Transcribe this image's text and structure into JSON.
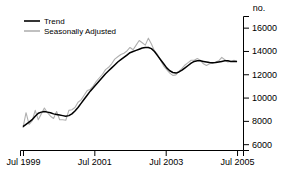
{
  "chart_data": {
    "type": "line",
    "ylabel": "no.",
    "x": [
      0,
      1.0285714286,
      2.0571428571,
      3.0857142857,
      4.1142857143,
      5.1428571429,
      6.1714285714,
      7.2,
      8.2285714286,
      9.2571428571,
      10.2857142857,
      11.3142857143,
      12.3428571429,
      13.3714285714,
      14.4,
      15.4285714286,
      16.4571428571,
      17.4857142857,
      18.5142857143,
      19.5428571429,
      20.5714285714,
      21.6,
      22.6285714286,
      23.6571428571,
      24.6857142857,
      25.7142857143,
      26.7428571429,
      27.7714285714,
      28.8,
      29.8285714286,
      30.8571428571,
      31.8857142857,
      32.9142857143,
      33.9428571429,
      34.9714285714,
      36,
      37.0285714286,
      38.0571428571,
      39.0857142857,
      40.1142857143,
      41.1428571429,
      42.1714285714,
      43.2,
      44.2285714286,
      45.2571428571,
      46.2857142857,
      47.3142857143,
      48.3428571429,
      49.3714285714,
      50.4,
      51.4285714286,
      52.4571428571,
      53.4857142857,
      54.5142857143,
      55.5428571429,
      56.5714285714,
      57.6,
      58.6285714286,
      59.6571428571,
      60.6857142857,
      61.7142857143,
      62.7428571429,
      63.7714285714,
      64.8,
      65.8285714286,
      66.8571428571,
      67.8857142857,
      68.9142857143,
      69.9428571429,
      70.9714285714,
      72
    ],
    "series": [
      {
        "name": "Trend",
        "color": "#000000",
        "values": [
          7500,
          7700,
          7900,
          8100,
          8400,
          8650,
          8750,
          8800,
          8750,
          8700,
          8600,
          8550,
          8500,
          8450,
          8400,
          8450,
          8600,
          8850,
          9150,
          9500,
          9850,
          10200,
          10550,
          10850,
          11150,
          11450,
          11750,
          12050,
          12300,
          12550,
          12800,
          13050,
          13250,
          13450,
          13650,
          13850,
          13950,
          14050,
          14150,
          14250,
          14300,
          14300,
          14200,
          13950,
          13600,
          13250,
          12900,
          12550,
          12300,
          12150,
          12100,
          12200,
          12350,
          12550,
          12750,
          12950,
          13100,
          13150,
          13150,
          13100,
          13050,
          13000,
          12980,
          13000,
          13050,
          13100,
          13150,
          13150,
          13100,
          13100,
          13100
        ]
      },
      {
        "name": "Seasonally Adjusted",
        "color": "#b0b0b0",
        "values": [
          7400,
          8700,
          7700,
          8000,
          8900,
          8100,
          8600,
          9100,
          8700,
          8400,
          8200,
          8800,
          8100,
          8100,
          8050,
          8900,
          8950,
          9150,
          9600,
          9800,
          10200,
          10600,
          10700,
          11000,
          11400,
          11700,
          12000,
          12400,
          12600,
          12900,
          13300,
          13500,
          13700,
          13800,
          14000,
          14300,
          14100,
          14500,
          14900,
          14700,
          14500,
          15100,
          14600,
          14000,
          13700,
          13200,
          12700,
          12400,
          12100,
          11900,
          11950,
          12250,
          12500,
          12800,
          13000,
          13200,
          13200,
          13350,
          13200,
          12900,
          12750,
          12900,
          12950,
          13050,
          13150,
          13450,
          13250,
          13050,
          13100,
          13200,
          13100
        ]
      }
    ],
    "xlim": [
      -1,
      74
    ],
    "xticks": [
      {
        "value": 0,
        "label": "Jul 1999"
      },
      {
        "value": 24,
        "label": "Jul 2001"
      },
      {
        "value": 48,
        "label": "Jul 2003"
      },
      {
        "value": 72,
        "label": "Jul 2005"
      }
    ],
    "ylim": [
      5500,
      17000
    ],
    "yticks": [
      6000,
      8000,
      10000,
      12000,
      14000,
      16000
    ],
    "legend": "upper left",
    "grid": false
  }
}
